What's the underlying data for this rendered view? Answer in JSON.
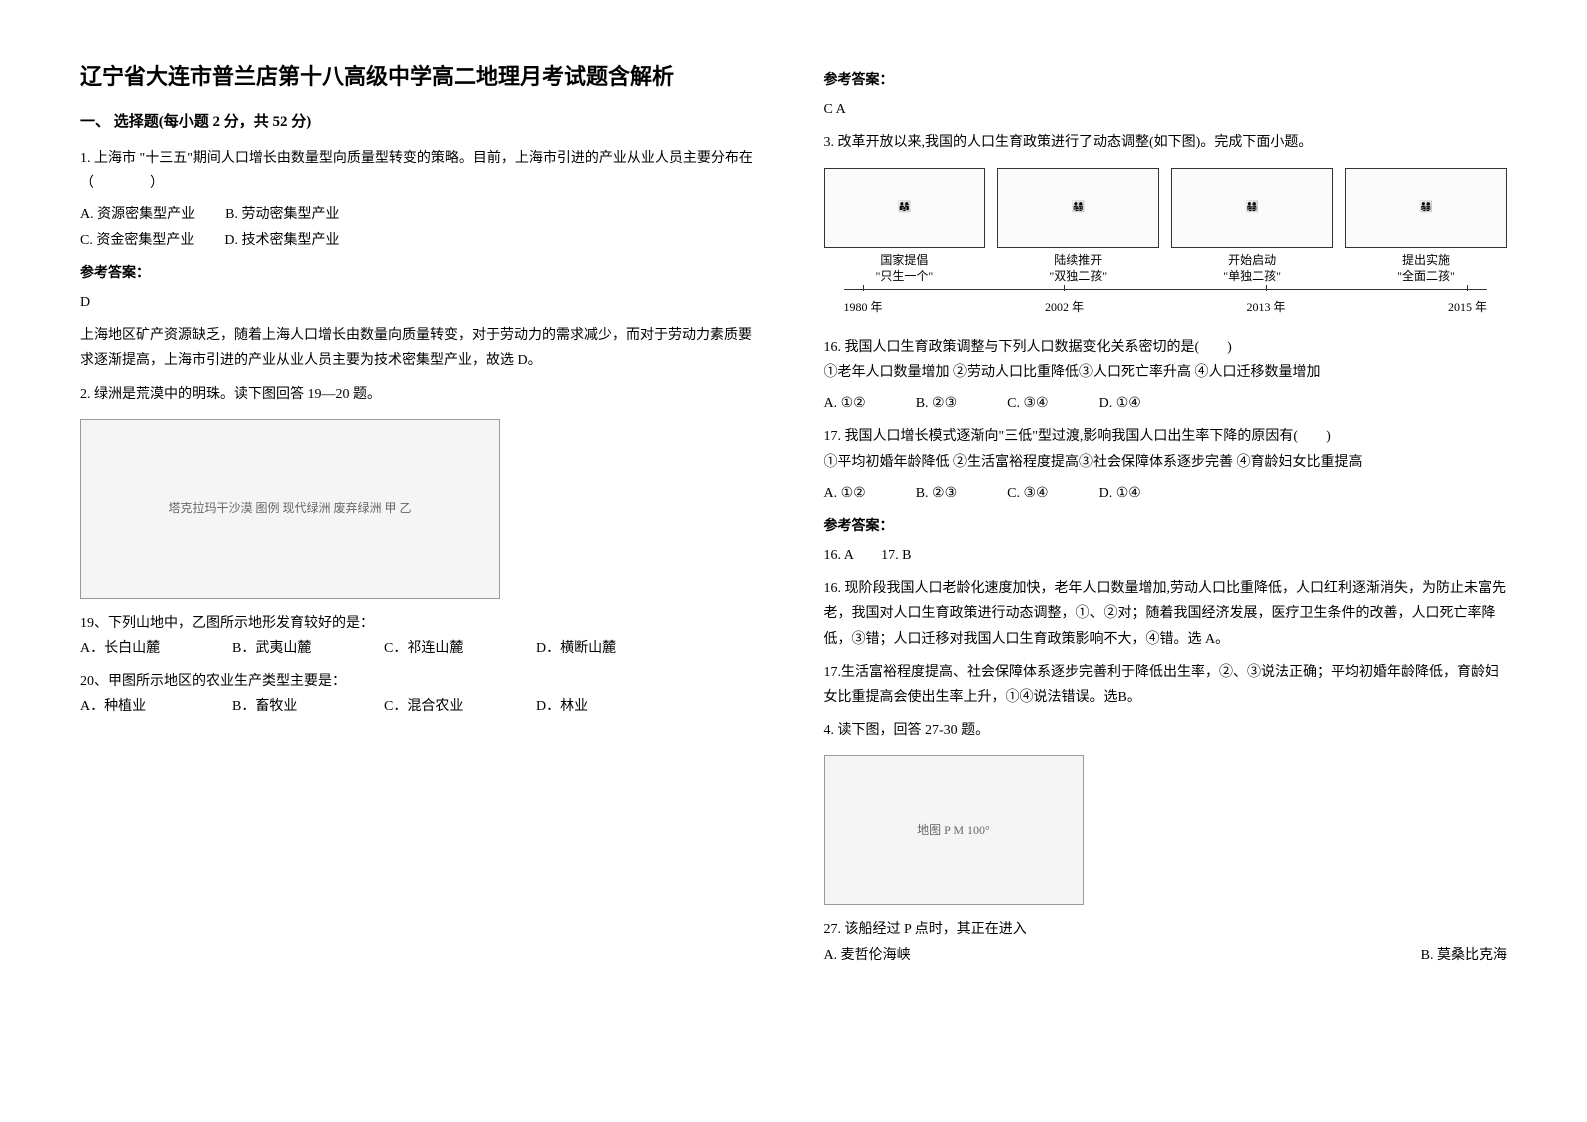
{
  "title": "辽宁省大连市普兰店第十八高级中学高二地理月考试题含解析",
  "section1": {
    "header": "一、 选择题(每小题 2 分，共 52 分)"
  },
  "q1": {
    "text": "1. 上海市 \"十三五\"期间人口增长由数量型向质量型转变的策略。目前，上海市引进的产业从业人员主要分布在（　　　　）",
    "optA": "A. 资源密集型产业",
    "optB": "B. 劳动密集型产业",
    "optC": "C. 资金密集型产业",
    "optD": "D. 技术密集型产业",
    "answerLabel": "参考答案：",
    "answer": "D",
    "explanation": "上海地区矿产资源缺乏，随着上海人口增长由数量向质量转变，对于劳动力的需求减少，而对于劳动力素质要求逐渐提高，上海市引进的产业从业人员主要为技术密集型产业，故选 D。"
  },
  "q2": {
    "text": "2. 绿洲是荒漠中的明珠。读下图回答 19—20 题。",
    "image_alt": "塔克拉玛干沙漠 图例 现代绿洲 废弃绿洲 甲 乙",
    "sub19": {
      "text": "19、下列山地中，乙图所示地形发育较好的是：",
      "optA": "A．长白山麓",
      "optB": "B．武夷山麓",
      "optC": "C．祁连山麓",
      "optD": "D．横断山麓"
    },
    "sub20": {
      "text": "20、甲图所示地区的农业生产类型主要是：",
      "optA": "A．种植业",
      "optB": "B．畜牧业",
      "optC": "C．混合农业",
      "optD": "D．林业"
    },
    "answerLabel": "参考答案：",
    "answer": "C  A"
  },
  "q3": {
    "text": "3. 改革开放以来,我国的人口生育政策进行了动态调整(如下图)。完成下面小题。",
    "policy": {
      "p1_title": "国家提倡",
      "p1_sub": "\"只生一个\"",
      "p2_title": "陆续推开",
      "p2_sub": "\"双独二孩\"",
      "p3_title": "开始启动",
      "p3_sub": "\"单独二孩\"",
      "p4_title": "提出实施",
      "p4_sub": "\"全面二孩\"",
      "y1": "1980 年",
      "y2": "2002 年",
      "y3": "2013 年",
      "y4": "2015 年"
    },
    "sub16": {
      "text": "16. 我国人口生育政策调整与下列人口数据变化关系密切的是(　　)",
      "items": "①老年人口数量增加 ②劳动人口比重降低③人口死亡率升高 ④人口迁移数量增加",
      "optA": "A. ①②",
      "optB": "B. ②③",
      "optC": "C. ③④",
      "optD": "D. ①④"
    },
    "sub17": {
      "text": "17. 我国人口增长模式逐渐向\"三低\"型过渡,影响我国人口出生率下降的原因有(　　)",
      "items": "①平均初婚年龄降低 ②生活富裕程度提高③社会保障体系逐步完善 ④育龄妇女比重提高",
      "optA": "A. ①②",
      "optB": "B. ②③",
      "optC": "C. ③④",
      "optD": "D. ①④"
    },
    "answerLabel": "参考答案：",
    "answer": "16. A　　17. B",
    "exp16": "16. 现阶段我国人口老龄化速度加快，老年人口数量增加,劳动人口比重降低，人口红利逐渐消失，为防止未富先老，我国对人口生育政策进行动态调整，①、②对；随着我国经济发展，医疗卫生条件的改善，人口死亡率降低，③错；人口迁移对我国人口生育政策影响不大，④错。选 A。",
    "exp17": "17.生活富裕程度提高、社会保障体系逐步完善利于降低出生率，②、③说法正确；平均初婚年龄降低，育龄妇女比重提高会使出生率上升，①④说法错误。选B。"
  },
  "q4": {
    "text": "4. 读下图，回答 27-30 题。",
    "image_alt": "地图 P M 100°",
    "sub27": {
      "text": "27. 该船经过 P 点时，其正在进入",
      "optA": "A. 麦哲伦海峡",
      "optB": "B. 莫桑比克海"
    }
  }
}
